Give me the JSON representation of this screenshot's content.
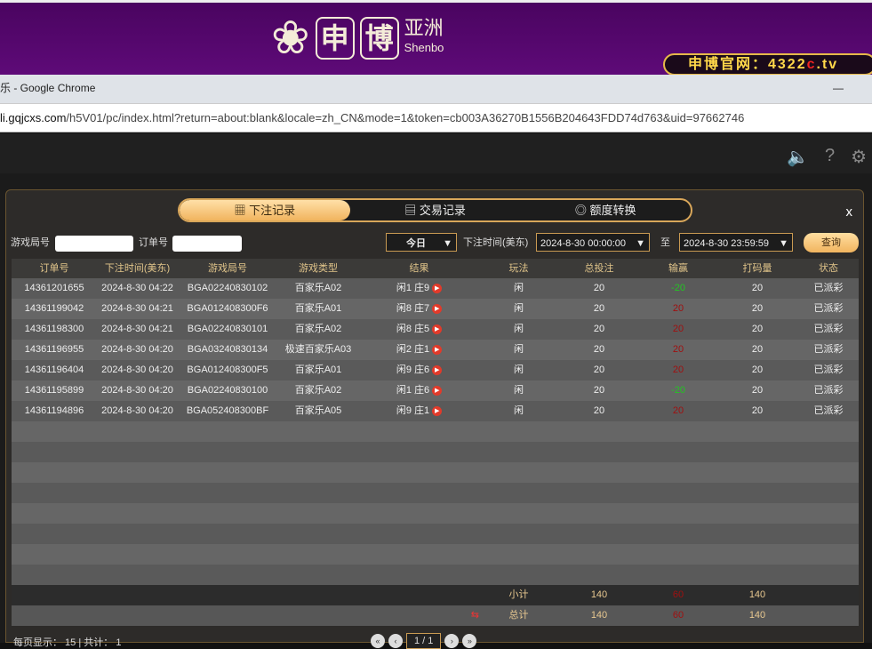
{
  "banner": {
    "brand_cn_1": "申",
    "brand_cn_2": "博",
    "brand_sub": "亚洲",
    "brand_en": "Shenbo",
    "site_prefix": "申博官网：4322",
    "site_c": "c",
    "site_suffix": ".tv"
  },
  "window": {
    "title": "乐 - Google Chrome",
    "minimize": "—"
  },
  "address": {
    "host": "li.gqjcxs.com",
    "path": "/h5V01/pc/index.html?return=about:blank&locale=zh_CN&mode=1&token=cb003A36270B1556B204643FDD74d763&uid=97662746"
  },
  "game": {
    "icons": [
      "speaker-icon",
      "help-icon",
      "gear-icon"
    ]
  },
  "modal": {
    "tabs": [
      {
        "label": "下注记录",
        "icon": "calendar-icon",
        "active": true
      },
      {
        "label": "交易记录",
        "icon": "document-icon"
      },
      {
        "label": "额度转换",
        "icon": "coins-icon"
      }
    ],
    "close": "x",
    "filter": {
      "round_label": "游戏局号",
      "round_value": "",
      "order_label": "订单号",
      "order_value": "",
      "period": "今日",
      "time_label": "下注时间(美东)",
      "start": "2024-8-30 00:00:00",
      "to": "至",
      "end": "2024-8-30 23:59:59",
      "query": "查询"
    },
    "columns": [
      "订单号",
      "下注时间(美东)",
      "游戏局号",
      "游戏类型",
      "结果",
      "玩法",
      "总投注",
      "输赢",
      "打码量",
      "状态"
    ],
    "rows": [
      [
        "14361201655",
        "2024-8-30 04:22",
        "BGA02240830102",
        "百家乐A02",
        "闲1 庄9",
        "闲",
        "20",
        "-20",
        "20",
        "已派彩"
      ],
      [
        "14361199042",
        "2024-8-30 04:21",
        "BGA012408300F6",
        "百家乐A01",
        "闲8 庄7",
        "闲",
        "20",
        "20",
        "20",
        "已派彩"
      ],
      [
        "14361198300",
        "2024-8-30 04:21",
        "BGA02240830101",
        "百家乐A02",
        "闲8 庄5",
        "闲",
        "20",
        "20",
        "20",
        "已派彩"
      ],
      [
        "14361196955",
        "2024-8-30 04:20",
        "BGA03240830134",
        "极速百家乐A03",
        "闲2 庄1",
        "闲",
        "20",
        "20",
        "20",
        "已派彩"
      ],
      [
        "14361196404",
        "2024-8-30 04:20",
        "BGA012408300F5",
        "百家乐A01",
        "闲9 庄6",
        "闲",
        "20",
        "20",
        "20",
        "已派彩"
      ],
      [
        "14361195899",
        "2024-8-30 04:20",
        "BGA02240830100",
        "百家乐A02",
        "闲1 庄6",
        "闲",
        "20",
        "-20",
        "20",
        "已派彩"
      ],
      [
        "14361194896",
        "2024-8-30 04:20",
        "BGA052408300BF",
        "百家乐A05",
        "闲9 庄1",
        "闲",
        "20",
        "20",
        "20",
        "已派彩"
      ]
    ],
    "subtotal": {
      "label": "小计",
      "bet": "140",
      "winloss": "60",
      "valid": "140"
    },
    "total": {
      "label": "总计",
      "bet": "140",
      "winloss": "60",
      "valid": "140"
    },
    "footer": {
      "per_page": "每页显示： 15 | 共计： 1",
      "page": "1 / 1"
    },
    "colors": {
      "win": "#23c423",
      "lose": "#a01010",
      "accent": "#f1b45e"
    }
  }
}
